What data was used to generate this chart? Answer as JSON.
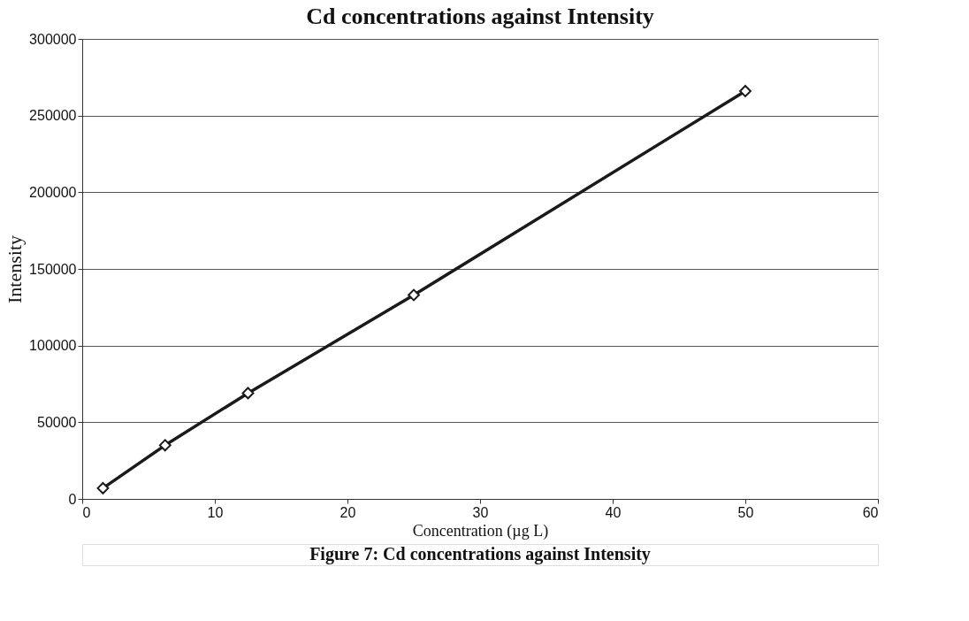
{
  "chart_data": {
    "type": "line",
    "title": "Cd concentrations against Intensity",
    "xlabel": "Concentration (µg L)",
    "ylabel": "Intensity",
    "x": [
      1.5625,
      6.25,
      12.5,
      25,
      50
    ],
    "series": [
      {
        "color": "#1a1a1a",
        "values": [
          7000,
          35000,
          69000,
          133000,
          266000
        ]
      }
    ],
    "xlim": [
      0,
      60
    ],
    "xticks": [
      0,
      10,
      20,
      30,
      40,
      50,
      60
    ],
    "ylim": [
      0,
      300000
    ],
    "yticks": [
      0,
      50000,
      100000,
      150000,
      200000,
      250000,
      300000
    ],
    "grid": "y",
    "marker": "diamond",
    "line_style": "solid",
    "annotations": [
      "Figure 7: Cd concentrations against Intensity"
    ]
  }
}
